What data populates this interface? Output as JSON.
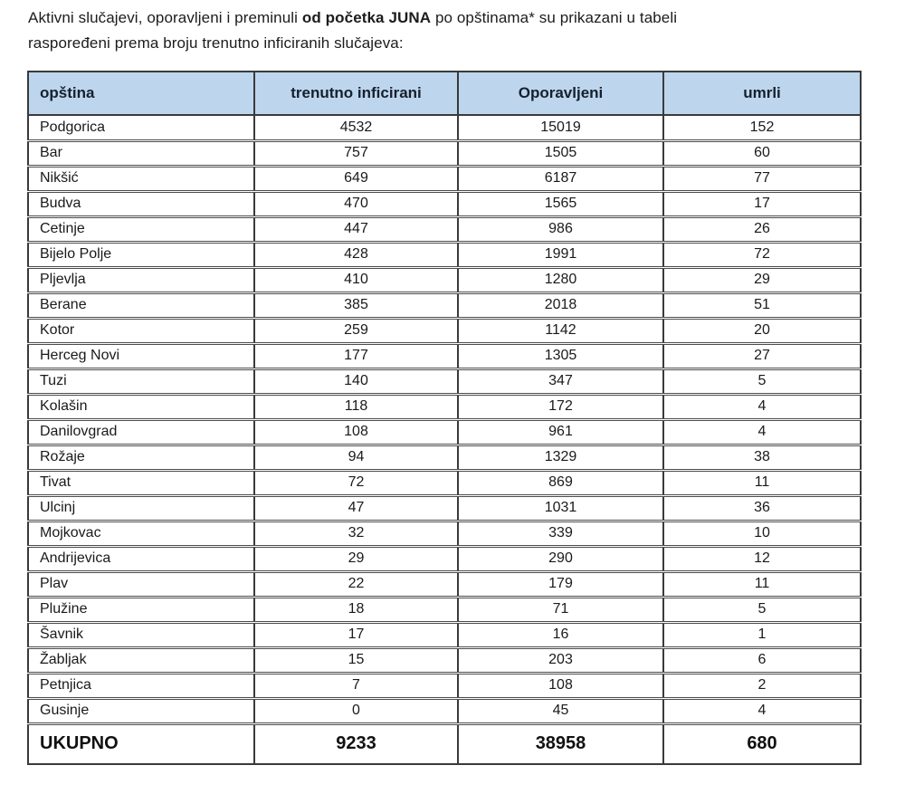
{
  "intro": {
    "text_before": "Aktivni slučajevi, oporavljeni i preminuli ",
    "text_bold": "od početka JUNA",
    "text_after": " po opštinama* su prikazani u tabeli\nraspoređeni prema broju trenutno inficiranih slučajeva:"
  },
  "table": {
    "headers": [
      "opština",
      "trenutno inficirani",
      "Oporavljeni",
      "umrli"
    ],
    "rows": [
      {
        "opstina": "Podgorica",
        "trenutno_inficirani": "4532",
        "oporavljeni": "15019",
        "umrli": "152"
      },
      {
        "opstina": "Bar",
        "trenutno_inficirani": "757",
        "oporavljeni": "1505",
        "umrli": "60"
      },
      {
        "opstina": "Nikšić",
        "trenutno_inficirani": "649",
        "oporavljeni": "6187",
        "umrli": "77"
      },
      {
        "opstina": "Budva",
        "trenutno_inficirani": "470",
        "oporavljeni": "1565",
        "umrli": "17"
      },
      {
        "opstina": "Cetinje",
        "trenutno_inficirani": "447",
        "oporavljeni": "986",
        "umrli": "26"
      },
      {
        "opstina": "Bijelo Polje",
        "trenutno_inficirani": "428",
        "oporavljeni": "1991",
        "umrli": "72"
      },
      {
        "opstina": "Pljevlja",
        "trenutno_inficirani": "410",
        "oporavljeni": "1280",
        "umrli": "29"
      },
      {
        "opstina": "Berane",
        "trenutno_inficirani": "385",
        "oporavljeni": "2018",
        "umrli": "51"
      },
      {
        "opstina": "Kotor",
        "trenutno_inficirani": "259",
        "oporavljeni": "1142",
        "umrli": "20"
      },
      {
        "opstina": "Herceg Novi",
        "trenutno_inficirani": "177",
        "oporavljeni": "1305",
        "umrli": "27"
      },
      {
        "opstina": "Tuzi",
        "trenutno_inficirani": "140",
        "oporavljeni": "347",
        "umrli": "5"
      },
      {
        "opstina": "Kolašin",
        "trenutno_inficirani": "118",
        "oporavljeni": "172",
        "umrli": "4"
      },
      {
        "opstina": "Danilovgrad",
        "trenutno_inficirani": "108",
        "oporavljeni": "961",
        "umrli": "4"
      },
      {
        "opstina": "Rožaje",
        "trenutno_inficirani": "94",
        "oporavljeni": "1329",
        "umrli": "38"
      },
      {
        "opstina": "Tivat",
        "trenutno_inficirani": "72",
        "oporavljeni": "869",
        "umrli": "11"
      },
      {
        "opstina": "Ulcinj",
        "trenutno_inficirani": "47",
        "oporavljeni": "1031",
        "umrli": "36"
      },
      {
        "opstina": "Mojkovac",
        "trenutno_inficirani": "32",
        "oporavljeni": "339",
        "umrli": "10"
      },
      {
        "opstina": "Andrijevica",
        "trenutno_inficirani": "29",
        "oporavljeni": "290",
        "umrli": "12"
      },
      {
        "opstina": "Plav",
        "trenutno_inficirani": "22",
        "oporavljeni": "179",
        "umrli": "11"
      },
      {
        "opstina": "Plužine",
        "trenutno_inficirani": "18",
        "oporavljeni": "71",
        "umrli": "5"
      },
      {
        "opstina": "Šavnik",
        "trenutno_inficirani": "17",
        "oporavljeni": "16",
        "umrli": "1"
      },
      {
        "opstina": "Žabljak",
        "trenutno_inficirani": "15",
        "oporavljeni": "203",
        "umrli": "6"
      },
      {
        "opstina": "Petnjica",
        "trenutno_inficirani": "7",
        "oporavljeni": "108",
        "umrli": "2"
      },
      {
        "opstina": "Gusinje",
        "trenutno_inficirani": "0",
        "oporavljeni": "45",
        "umrli": "4"
      }
    ],
    "total": {
      "label": "UKUPNO",
      "trenutno_inficirani": "9233",
      "oporavljeni": "38958",
      "umrli": "680"
    }
  },
  "colors": {
    "header_bg": "#bdd6ee",
    "header_text": "#16202c",
    "border_dark": "#3a3a3a",
    "row_border": "#4c4c4c"
  }
}
